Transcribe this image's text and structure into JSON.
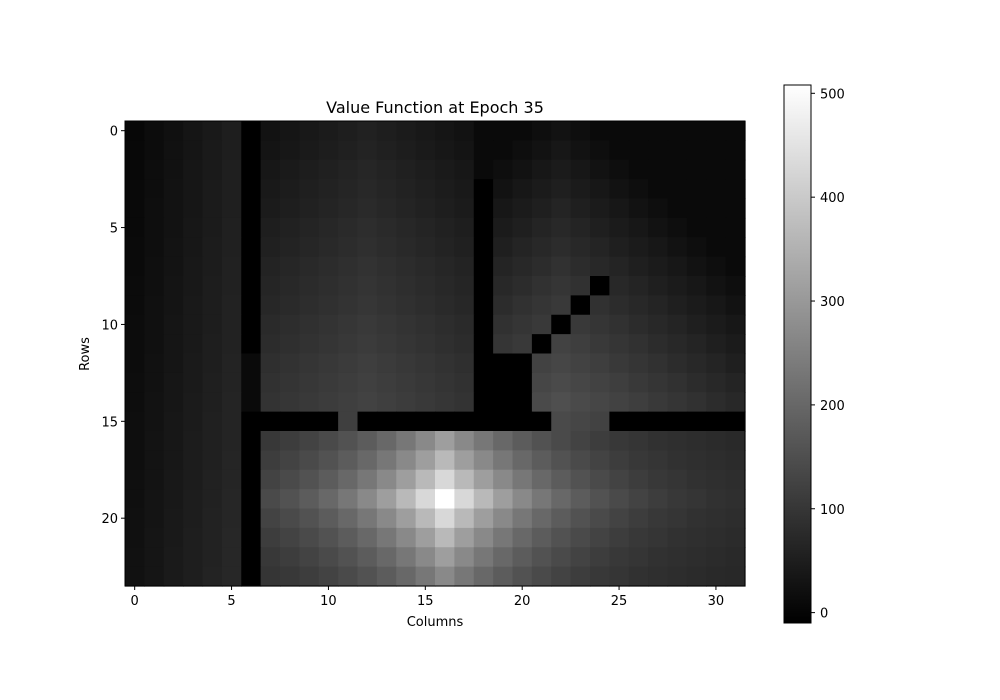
{
  "chart_data": {
    "type": "heatmap",
    "title": "Value Function at Epoch 35",
    "xlabel": "Columns",
    "ylabel": "Rows",
    "rows": 24,
    "cols": 32,
    "colormap": "gray",
    "vmin": -10,
    "vmax": 508,
    "x_ticks": [
      0,
      5,
      10,
      15,
      20,
      25,
      30
    ],
    "y_ticks": [
      0,
      5,
      10,
      15,
      20
    ],
    "colorbar_ticks": [
      0,
      100,
      200,
      300,
      400,
      500
    ],
    "grid": false,
    "walls": [
      {
        "axis": "col",
        "index": 6,
        "from": 0,
        "to": 11
      },
      {
        "axis": "col",
        "index": 18,
        "from": 3,
        "to": 14
      },
      {
        "axis": "col",
        "index": 19,
        "from": 12,
        "to": 14
      },
      {
        "axis": "col",
        "index": 20,
        "from": 12,
        "to": 14
      },
      {
        "axis": "col",
        "index": 21,
        "from": 11,
        "to": 11
      },
      {
        "axis": "col",
        "index": 22,
        "from": 10,
        "to": 10
      },
      {
        "axis": "col",
        "index": 23,
        "from": 9,
        "to": 9
      },
      {
        "axis": "col",
        "index": 24,
        "from": 8,
        "to": 8
      },
      {
        "axis": "row",
        "index": 15,
        "from": 6,
        "to": 10
      },
      {
        "axis": "row",
        "index": 15,
        "from": 12,
        "to": 21
      },
      {
        "axis": "row",
        "index": 15,
        "from": 25,
        "to": 31
      },
      {
        "axis": "col",
        "index": 6,
        "from": 15,
        "to": 23
      }
    ],
    "peak": {
      "row": 19,
      "col": 16,
      "value": 508
    },
    "regions": [
      {
        "name": "left",
        "cols": [
          0,
          5
        ],
        "rows": [
          0,
          23
        ],
        "value_min": 5,
        "value_max": 70
      },
      {
        "name": "upper-middle",
        "cols": [
          7,
          17
        ],
        "rows": [
          0,
          14
        ],
        "value_min": 20,
        "value_max": 125
      },
      {
        "name": "upper-right",
        "cols": [
          19,
          31
        ],
        "rows": [
          0,
          14
        ],
        "value_min": 10,
        "value_max": 150
      },
      {
        "name": "lower-room",
        "cols": [
          7,
          31
        ],
        "rows": [
          16,
          23
        ],
        "value_min": 60,
        "value_max": 508
      }
    ]
  }
}
